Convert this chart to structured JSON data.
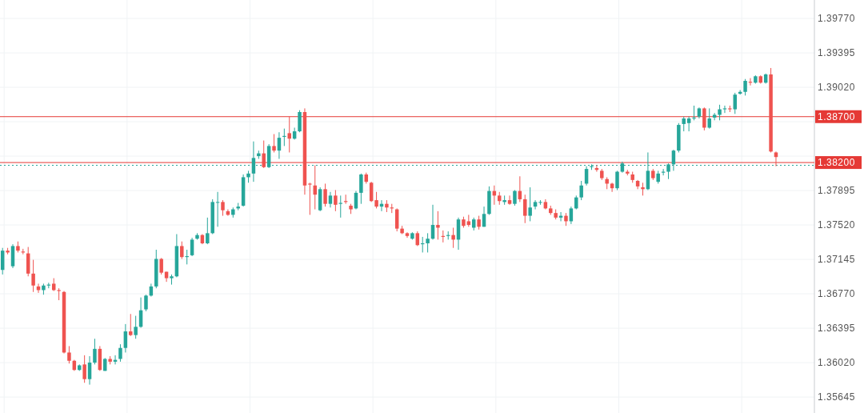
{
  "chart_data": {
    "type": "candlestick",
    "categories": [
      null,
      null,
      null,
      null,
      null,
      null,
      null,
      null,
      null,
      null,
      null,
      null,
      null,
      null,
      null,
      null,
      null,
      null,
      null,
      null,
      null,
      null,
      null,
      null,
      null,
      null,
      null,
      null,
      null,
      null,
      null,
      null,
      null,
      null,
      null,
      null,
      null,
      null,
      null,
      null,
      null,
      null,
      null,
      null,
      null,
      null,
      null,
      null,
      null,
      null,
      null,
      null,
      null,
      null,
      null,
      null,
      null,
      null,
      null,
      null,
      null,
      null,
      null,
      null,
      null,
      null,
      null,
      null,
      null,
      null,
      null,
      null,
      null,
      null,
      null,
      null,
      null,
      null,
      null,
      null,
      null,
      null,
      null,
      null,
      null,
      null,
      null,
      null,
      null,
      null,
      null,
      null,
      null,
      null,
      null,
      null,
      null,
      null,
      null,
      null,
      null,
      null,
      null,
      null,
      null,
      null,
      null,
      null,
      null,
      null,
      null,
      null,
      null,
      null,
      null,
      null,
      null,
      null,
      null,
      null,
      null,
      null,
      null,
      null,
      null,
      null,
      null,
      null,
      null,
      null,
      null,
      null,
      null,
      null,
      null,
      null,
      null,
      null,
      null,
      null,
      null,
      null,
      null,
      null,
      null,
      null,
      null,
      null,
      null,
      null,
      null,
      null,
      null,
      null,
      null,
      null,
      null,
      null,
      null
    ],
    "ohlc": [
      [
        1.3703,
        1.3727,
        1.3698,
        1.3724
      ],
      [
        1.3724,
        1.3727,
        1.372,
        1.3722
      ],
      [
        1.3707,
        1.3731,
        1.3705,
        1.3729
      ],
      [
        1.3729,
        1.3734,
        1.3722,
        1.3724
      ],
      [
        1.3723,
        1.3726,
        1.372,
        1.3722
      ],
      [
        1.3721,
        1.3728,
        1.3696,
        1.3699
      ],
      [
        1.3699,
        1.3714,
        1.3679,
        1.3686
      ],
      [
        1.3685,
        1.3688,
        1.3678,
        1.3681
      ],
      [
        1.3681,
        1.3688,
        1.3676,
        1.3686
      ],
      [
        1.3686,
        1.3689,
        1.3683,
        1.3687
      ],
      [
        1.3688,
        1.3694,
        1.368,
        1.3681
      ],
      [
        1.3681,
        1.3683,
        1.367,
        1.368
      ],
      [
        1.3679,
        1.368,
        1.3612,
        1.3613
      ],
      [
        1.3613,
        1.362,
        1.3601,
        1.3604
      ],
      [
        1.3604,
        1.3605,
        1.3593,
        1.3594
      ],
      [
        1.3594,
        1.36,
        1.3593,
        1.3599
      ],
      [
        1.36,
        1.361,
        1.358,
        1.3584
      ],
      [
        1.3584,
        1.3609,
        1.3578,
        1.3602
      ],
      [
        1.3602,
        1.3628,
        1.36,
        1.3617
      ],
      [
        1.3617,
        1.362,
        1.3593,
        1.3594
      ],
      [
        1.3593,
        1.3607,
        1.3593,
        1.3606
      ],
      [
        1.3606,
        1.3609,
        1.36,
        1.3603
      ],
      [
        1.3603,
        1.361,
        1.36,
        1.3605
      ],
      [
        1.3606,
        1.3622,
        1.3603,
        1.3618
      ],
      [
        1.3618,
        1.3644,
        1.3613,
        1.3636
      ],
      [
        1.3636,
        1.3655,
        1.3631,
        1.3632
      ],
      [
        1.3632,
        1.3653,
        1.3628,
        1.3641
      ],
      [
        1.3641,
        1.3673,
        1.364,
        1.3659
      ],
      [
        1.366,
        1.3676,
        1.3658,
        1.3675
      ],
      [
        1.3675,
        1.3688,
        1.3674,
        1.3685
      ],
      [
        1.3685,
        1.3725,
        1.3683,
        1.3715
      ],
      [
        1.3715,
        1.3716,
        1.3698,
        1.37
      ],
      [
        1.3701,
        1.3701,
        1.369,
        1.3694
      ],
      [
        1.3694,
        1.3698,
        1.3687,
        1.3696
      ],
      [
        1.3696,
        1.3742,
        1.3695,
        1.3729
      ],
      [
        1.3729,
        1.3734,
        1.3715,
        1.3717
      ],
      [
        1.3717,
        1.3725,
        1.3709,
        1.3718
      ],
      [
        1.3719,
        1.3738,
        1.3718,
        1.3736
      ],
      [
        1.3737,
        1.3743,
        1.3736,
        1.3741
      ],
      [
        1.3741,
        1.3742,
        1.3731,
        1.3732
      ],
      [
        1.3732,
        1.376,
        1.3731,
        1.3743
      ],
      [
        1.3743,
        1.378,
        1.3742,
        1.3777
      ],
      [
        1.3777,
        1.3788,
        1.375,
        1.3777
      ],
      [
        1.3777,
        1.3779,
        1.3762,
        1.3768
      ],
      [
        1.3767,
        1.3769,
        1.3762,
        1.3763
      ],
      [
        1.3763,
        1.3771,
        1.376,
        1.3769
      ],
      [
        1.377,
        1.3776,
        1.3768,
        1.3772
      ],
      [
        1.3773,
        1.3807,
        1.3772,
        1.3804
      ],
      [
        1.3804,
        1.3811,
        1.3798,
        1.3808
      ],
      [
        1.3808,
        1.3843,
        1.3799,
        1.3825
      ],
      [
        1.3827,
        1.3833,
        1.3824,
        1.383
      ],
      [
        1.383,
        1.3844,
        1.3814,
        1.3815
      ],
      [
        1.3815,
        1.384,
        1.3814,
        1.3838
      ],
      [
        1.3838,
        1.3851,
        1.3831,
        1.3833
      ],
      [
        1.3833,
        1.3853,
        1.3824,
        1.3847
      ],
      [
        1.3848,
        1.3857,
        1.3838,
        1.3849
      ],
      [
        1.3852,
        1.387,
        1.3831,
        1.3846
      ],
      [
        1.3846,
        1.3858,
        1.3845,
        1.3854
      ],
      [
        1.3854,
        1.3877,
        1.3853,
        1.3875
      ],
      [
        1.3875,
        1.3879,
        1.3785,
        1.3795
      ],
      [
        1.3797,
        1.3798,
        1.3763,
        1.3796
      ],
      [
        1.3795,
        1.3817,
        1.3769,
        1.3785
      ],
      [
        1.3768,
        1.3793,
        1.3767,
        1.3791
      ],
      [
        1.3791,
        1.3797,
        1.3772,
        1.3775
      ],
      [
        1.3775,
        1.3788,
        1.3771,
        1.3784
      ],
      [
        1.3784,
        1.379,
        1.3767,
        1.3774
      ],
      [
        1.3775,
        1.3784,
        1.376,
        1.3776
      ],
      [
        1.3778,
        1.3785,
        1.3775,
        1.3777
      ],
      [
        1.3773,
        1.3775,
        1.3764,
        1.3769
      ],
      [
        1.377,
        1.3789,
        1.3769,
        1.3787
      ],
      [
        1.3787,
        1.3808,
        1.3775,
        1.3807
      ],
      [
        1.3807,
        1.3809,
        1.3797,
        1.3799
      ],
      [
        1.3798,
        1.3799,
        1.3777,
        1.3778
      ],
      [
        1.3779,
        1.3788,
        1.377,
        1.3772
      ],
      [
        1.3772,
        1.3779,
        1.3767,
        1.3775
      ],
      [
        1.3775,
        1.3779,
        1.3766,
        1.3771
      ],
      [
        1.3771,
        1.3775,
        1.3765,
        1.377
      ],
      [
        1.3769,
        1.377,
        1.3745,
        1.3748
      ],
      [
        1.3748,
        1.3751,
        1.3742,
        1.3743
      ],
      [
        1.3743,
        1.3744,
        1.3738,
        1.374
      ],
      [
        1.3737,
        1.3744,
        1.3736,
        1.3743
      ],
      [
        1.3743,
        1.3745,
        1.3729,
        1.373
      ],
      [
        1.3731,
        1.3739,
        1.3722,
        1.3732
      ],
      [
        1.3732,
        1.3743,
        1.3722,
        1.3737
      ],
      [
        1.3737,
        1.3774,
        1.3736,
        1.3752
      ],
      [
        1.3752,
        1.3767,
        1.3736,
        1.3749
      ],
      [
        1.374,
        1.3746,
        1.3733,
        1.3739
      ],
      [
        1.374,
        1.3745,
        1.3736,
        1.3741
      ],
      [
        1.3741,
        1.3749,
        1.3727,
        1.3736
      ],
      [
        1.3736,
        1.376,
        1.3725,
        1.3758
      ],
      [
        1.3758,
        1.3761,
        1.3749,
        1.3751
      ],
      [
        1.3756,
        1.3763,
        1.375,
        1.3752
      ],
      [
        1.3749,
        1.376,
        1.3746,
        1.3758
      ],
      [
        1.3758,
        1.3762,
        1.3747,
        1.375
      ],
      [
        1.375,
        1.3772,
        1.375,
        1.3764
      ],
      [
        1.3764,
        1.3794,
        1.3763,
        1.3789
      ],
      [
        1.3789,
        1.3795,
        1.3774,
        1.3784
      ],
      [
        1.3784,
        1.3788,
        1.3774,
        1.3778
      ],
      [
        1.3777,
        1.3784,
        1.3774,
        1.3779
      ],
      [
        1.3779,
        1.3784,
        1.3774,
        1.3775
      ],
      [
        1.3775,
        1.379,
        1.3773,
        1.3789
      ],
      [
        1.3789,
        1.3805,
        1.3777,
        1.378
      ],
      [
        1.378,
        1.3785,
        1.3754,
        1.3762
      ],
      [
        1.3762,
        1.3793,
        1.3756,
        1.3771
      ],
      [
        1.3772,
        1.3779,
        1.3769,
        1.3777
      ],
      [
        1.3777,
        1.3779,
        1.3774,
        1.3777
      ],
      [
        1.3777,
        1.378,
        1.3769,
        1.377
      ],
      [
        1.377,
        1.3773,
        1.3763,
        1.3765
      ],
      [
        1.3765,
        1.3769,
        1.3758,
        1.376
      ],
      [
        1.376,
        1.3766,
        1.3756,
        1.3762
      ],
      [
        1.3762,
        1.3765,
        1.3751,
        1.3756
      ],
      [
        1.3756,
        1.3772,
        1.3753,
        1.377
      ],
      [
        1.377,
        1.3784,
        1.3769,
        1.3782
      ],
      [
        1.3782,
        1.38,
        1.3779,
        1.3795
      ],
      [
        1.3797,
        1.3816,
        1.3795,
        1.3813
      ],
      [
        1.3815,
        1.3818,
        1.3812,
        1.3816
      ],
      [
        1.3814,
        1.3817,
        1.381,
        1.3812
      ],
      [
        1.3811,
        1.3813,
        1.3801,
        1.3803
      ],
      [
        1.3802,
        1.3804,
        1.3791,
        1.3797
      ],
      [
        1.3797,
        1.3798,
        1.3788,
        1.3792
      ],
      [
        1.3792,
        1.3811,
        1.379,
        1.381
      ],
      [
        1.381,
        1.3821,
        1.3809,
        1.3819
      ],
      [
        1.381,
        1.3812,
        1.3806,
        1.3808
      ],
      [
        1.3807,
        1.381,
        1.3798,
        1.3801
      ],
      [
        1.38,
        1.3801,
        1.3791,
        1.3794
      ],
      [
        1.3793,
        1.3798,
        1.3784,
        1.3791
      ],
      [
        1.3791,
        1.3831,
        1.379,
        1.3811
      ],
      [
        1.3811,
        1.3813,
        1.3801,
        1.3803
      ],
      [
        1.3799,
        1.3811,
        1.3797,
        1.3808
      ],
      [
        1.3809,
        1.3813,
        1.3806,
        1.381
      ],
      [
        1.381,
        1.3819,
        1.3802,
        1.3818
      ],
      [
        1.3818,
        1.3834,
        1.3811,
        1.3833
      ],
      [
        1.3833,
        1.3863,
        1.3831,
        1.3861
      ],
      [
        1.3862,
        1.387,
        1.3854,
        1.3868
      ],
      [
        1.3863,
        1.387,
        1.3854,
        1.3868
      ],
      [
        1.3868,
        1.3882,
        1.3866,
        1.3869
      ],
      [
        1.387,
        1.388,
        1.3868,
        1.3879
      ],
      [
        1.3879,
        1.388,
        1.3855,
        1.3858
      ],
      [
        1.3858,
        1.3879,
        1.3857,
        1.3868
      ],
      [
        1.3869,
        1.3874,
        1.3866,
        1.3872
      ],
      [
        1.3872,
        1.3883,
        1.3866,
        1.3878
      ],
      [
        1.3878,
        1.3882,
        1.3874,
        1.3879
      ],
      [
        1.3879,
        1.3882,
        1.3875,
        1.3878
      ],
      [
        1.3878,
        1.3896,
        1.3873,
        1.3894
      ],
      [
        1.3895,
        1.3899,
        1.3894,
        1.3897
      ],
      [
        1.3897,
        1.3911,
        1.3893,
        1.3909
      ],
      [
        1.3908,
        1.3912,
        1.3904,
        1.3907
      ],
      [
        1.3907,
        1.3915,
        1.3906,
        1.3914
      ],
      [
        1.3914,
        1.3915,
        1.3906,
        1.3907
      ],
      [
        1.3907,
        1.3917,
        1.3906,
        1.3916
      ],
      [
        1.3916,
        1.3923,
        1.3831,
        1.3832
      ],
      [
        1.3831,
        1.3832,
        1.3816,
        1.3826
      ],
      null,
      null,
      null,
      null,
      null,
      null,
      null
    ],
    "colors": [
      "#26a69a",
      "#ef5350",
      "#26a69a",
      "#ef5350",
      "#ef5350",
      "#ef5350",
      "#ef5350",
      "#ef5350",
      "#26a69a",
      "#26a69a",
      "#ef5350",
      "#ef5350",
      "#ef5350",
      "#ef5350",
      "#ef5350",
      "#26a69a",
      "#ef5350",
      "#26a69a",
      "#26a69a",
      "#ef5350",
      "#26a69a",
      "#ef5350",
      "#26a69a",
      "#26a69a",
      "#26a69a",
      "#ef5350",
      "#26a69a",
      "#26a69a",
      "#26a69a",
      "#26a69a",
      "#26a69a",
      "#ef5350",
      "#ef5350",
      "#26a69a",
      "#26a69a",
      "#ef5350",
      "#26a69a",
      "#26a69a",
      "#26a69a",
      "#ef5350",
      "#26a69a",
      "#26a69a",
      "#26a69a",
      "#ef5350",
      "#ef5350",
      "#26a69a",
      "#26a69a",
      "#26a69a",
      "#26a69a",
      "#26a69a",
      "#26a69a",
      "#ef5350",
      "#26a69a",
      "#ef5350",
      "#26a69a",
      "#26a69a",
      "#ef5350",
      "#26a69a",
      "#26a69a",
      "#ef5350",
      "#ef5350",
      "#ef5350",
      "#26a69a",
      "#ef5350",
      "#26a69a",
      "#ef5350",
      "#26a69a",
      "#ef5350",
      "#ef5350",
      "#26a69a",
      "#26a69a",
      "#ef5350",
      "#ef5350",
      "#ef5350",
      "#26a69a",
      "#ef5350",
      "#ef5350",
      "#ef5350",
      "#ef5350",
      "#ef5350",
      "#26a69a",
      "#ef5350",
      "#26a69a",
      "#26a69a",
      "#26a69a",
      "#ef5350",
      "#ef5350",
      "#26a69a",
      "#ef5350",
      "#26a69a",
      "#ef5350",
      "#ef5350",
      "#26a69a",
      "#ef5350",
      "#26a69a",
      "#26a69a",
      "#ef5350",
      "#ef5350",
      "#26a69a",
      "#ef5350",
      "#26a69a",
      "#ef5350",
      "#ef5350",
      "#26a69a",
      "#26a69a",
      "#26a69a",
      "#ef5350",
      "#ef5350",
      "#ef5350",
      "#26a69a",
      "#ef5350",
      "#26a69a",
      "#26a69a",
      "#26a69a",
      "#26a69a",
      "#26a69a",
      "#ef5350",
      "#ef5350",
      "#ef5350",
      "#ef5350",
      "#26a69a",
      "#26a69a",
      "#ef5350",
      "#ef5350",
      "#ef5350",
      "#ef5350",
      "#26a69a",
      "#ef5350",
      "#26a69a",
      "#26a69a",
      "#26a69a",
      "#26a69a",
      "#26a69a",
      "#26a69a",
      "#26a69a",
      "#26a69a",
      "#26a69a",
      "#ef5350",
      "#26a69a",
      "#26a69a",
      "#26a69a",
      "#26a69a",
      "#ef5350",
      "#26a69a",
      "#26a69a",
      "#26a69a",
      "#ef5350",
      "#26a69a",
      "#ef5350",
      "#26a69a",
      "#ef5350",
      "#ef5350",
      null,
      null,
      null,
      null,
      null,
      null,
      null
    ],
    "ylim": [
      1.35471,
      1.39971
    ],
    "yticks": [
      {
        "value": 1.3977,
        "label": "1.39770"
      },
      {
        "value": 1.39395,
        "label": "1.39395"
      },
      {
        "value": 1.3902,
        "label": "1.39020"
      },
      {
        "value": 1.38645,
        "label": null
      },
      {
        "value": 1.3827,
        "label": null
      },
      {
        "value": 1.37895,
        "label": "1.37895"
      },
      {
        "value": 1.3752,
        "label": "1.37520"
      },
      {
        "value": 1.37145,
        "label": "1.37145"
      },
      {
        "value": 1.3677,
        "label": "1.36770"
      },
      {
        "value": 1.36395,
        "label": "1.36395"
      },
      {
        "value": 1.3602,
        "label": "1.36020"
      },
      {
        "value": 1.35645,
        "label": "1.35645"
      }
    ],
    "grid": true,
    "ref_lines": [
      {
        "axis": "y",
        "value": 1.387,
        "label": "1.38700",
        "color": "#e53935"
      },
      {
        "axis": "y",
        "value": 1.382,
        "label": "1.38200",
        "color": "#e53935"
      },
      {
        "axis": "y",
        "value": 1.3817,
        "color": "#26a69a",
        "line_style": "dotted"
      }
    ]
  }
}
